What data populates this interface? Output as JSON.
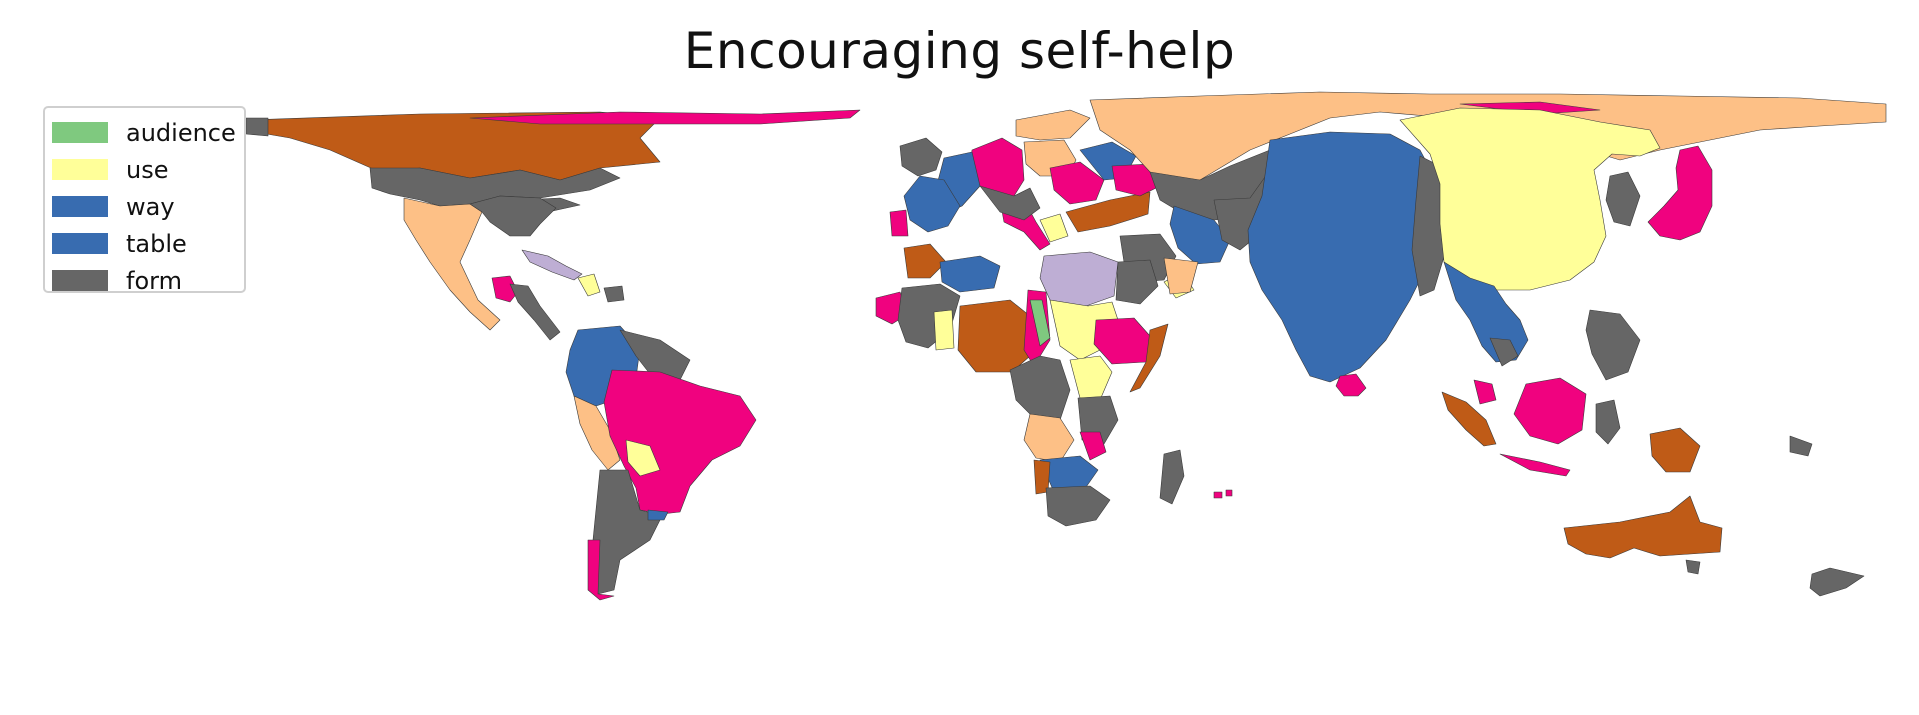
{
  "title": "Encouraging self-help",
  "legend": {
    "items": [
      {
        "label": "audience",
        "color": "#7fc97f"
      },
      {
        "label": "use",
        "color": "#ffff99"
      },
      {
        "label": "way",
        "color": "#386cb0"
      },
      {
        "label": "table",
        "color": "#386cb0"
      },
      {
        "label": "form",
        "color": "#666666"
      }
    ]
  },
  "map": {
    "projection": "cartogram",
    "palette": [
      "#7fc97f",
      "#beaed4",
      "#fdc086",
      "#ffff99",
      "#386cb0",
      "#f0027f",
      "#bf5b17",
      "#666666"
    ],
    "ocean_color": "#ffffff",
    "border_color": "#3a3a3a"
  }
}
